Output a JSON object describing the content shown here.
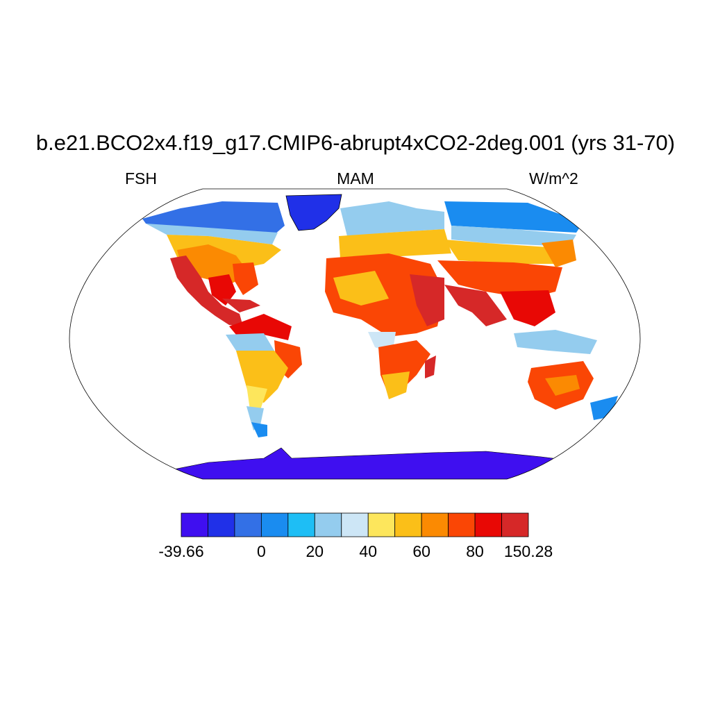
{
  "title": "b.e21.BCO2x4.f19_g17.CMIP6-abrupt4xCO2-2deg.001 (yrs 31-70)",
  "left_string": "FSH",
  "center_string": "MAM",
  "right_string": "W/m^2",
  "colorbar": {
    "colors": [
      "#3f0ff0",
      "#2030e8",
      "#3370e6",
      "#1a8cf0",
      "#1ebef5",
      "#94ccee",
      "#cde6f6",
      "#fde65c",
      "#fbbf18",
      "#fb8a02",
      "#fa4605",
      "#e80805",
      "#d62828"
    ],
    "labels": [
      "-39.66",
      "0",
      "20",
      "40",
      "60",
      "80",
      "150.28"
    ],
    "min": -39.66,
    "max": 150.28
  },
  "map": {
    "projection": "Robinson",
    "variable": "FSH",
    "season": "MAM",
    "units": "W/m^2"
  }
}
